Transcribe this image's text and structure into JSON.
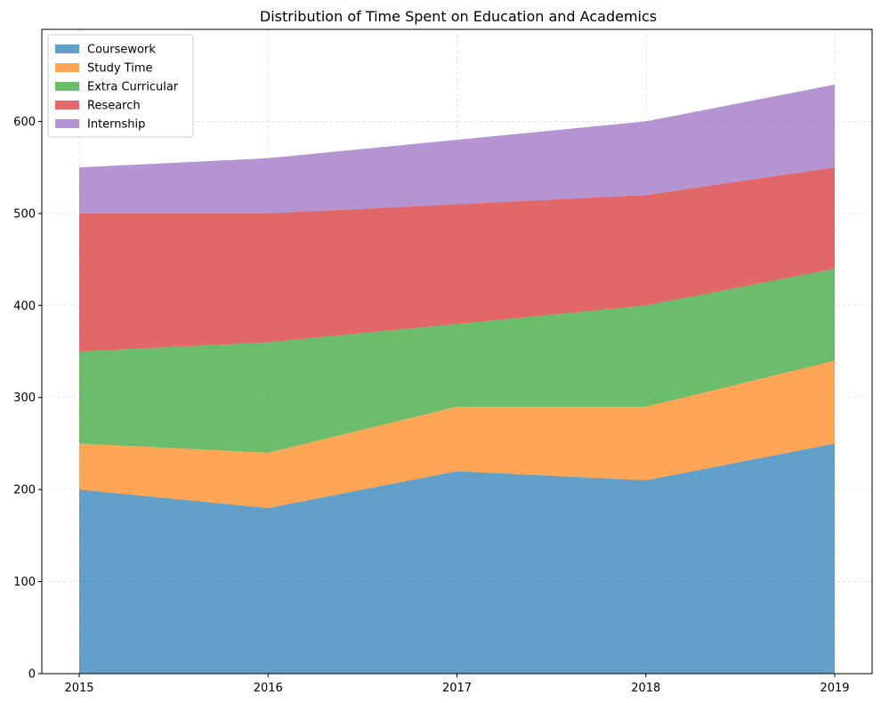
{
  "chart_data": {
    "type": "area",
    "stacked": true,
    "title": "Distribution of Time Spent on Education and Academics",
    "xlabel": "",
    "ylabel": "",
    "x": [
      "2015",
      "2016",
      "2017",
      "2018",
      "2019"
    ],
    "ylim": [
      0,
      700
    ],
    "yticks": [
      0,
      100,
      200,
      300,
      400,
      500,
      600
    ],
    "grid": true,
    "legend_position": "upper-left",
    "series": [
      {
        "name": "Coursework",
        "color": "#1f77b4",
        "values": [
          200,
          180,
          220,
          210,
          250
        ]
      },
      {
        "name": "Study Time",
        "color": "#ff7f0e",
        "values": [
          50,
          60,
          70,
          80,
          90
        ]
      },
      {
        "name": "Extra Curricular",
        "color": "#2ca02c",
        "values": [
          100,
          120,
          90,
          110,
          100
        ]
      },
      {
        "name": "Research",
        "color": "#d62728",
        "values": [
          150,
          140,
          130,
          120,
          110
        ]
      },
      {
        "name": "Internship",
        "color": "#9467bd",
        "values": [
          50,
          60,
          70,
          80,
          90
        ]
      }
    ]
  }
}
